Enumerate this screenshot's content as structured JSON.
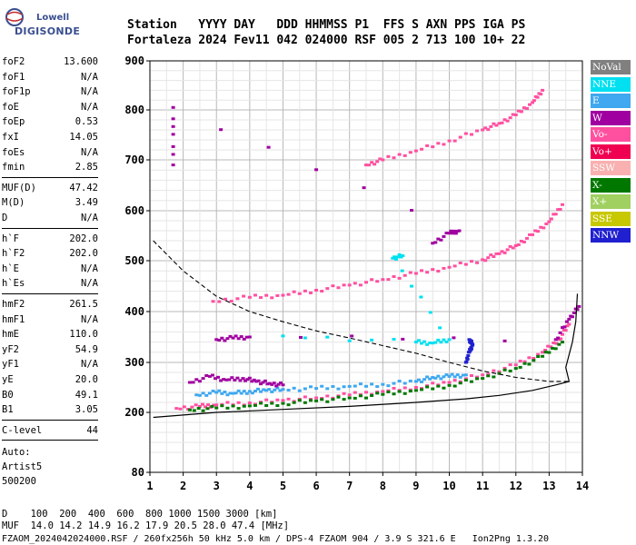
{
  "logo": {
    "brand": "Lowell",
    "product": "DIGISONDE"
  },
  "header": {
    "line1": "Station   YYYY DAY   DDD HHMMSS P1  FFS S AXN PPS IGA PS",
    "line2": "Fortaleza 2024 Fev11 042 024000 RSF 005 2 713 100 10+ 22"
  },
  "params_a": [
    {
      "k": "foF2",
      "v": "13.600"
    },
    {
      "k": "foF1",
      "v": "N/A"
    },
    {
      "k": "foF1p",
      "v": "N/A"
    },
    {
      "k": "foE",
      "v": "N/A"
    },
    {
      "k": "foEp",
      "v": "0.53"
    },
    {
      "k": "fxI",
      "v": "14.05"
    },
    {
      "k": "foEs",
      "v": "N/A"
    },
    {
      "k": "fmin",
      "v": "2.85"
    }
  ],
  "params_b": [
    {
      "k": "MUF(D)",
      "v": "47.42"
    },
    {
      "k": "M(D)",
      "v": "3.49"
    },
    {
      "k": "D",
      "v": "N/A"
    }
  ],
  "params_c": [
    {
      "k": "h`F",
      "v": "202.0"
    },
    {
      "k": "h`F2",
      "v": "202.0"
    },
    {
      "k": "h`E",
      "v": "N/A"
    },
    {
      "k": "h`Es",
      "v": "N/A"
    }
  ],
  "params_d": [
    {
      "k": "hmF2",
      "v": "261.5"
    },
    {
      "k": "hmF1",
      "v": "N/A"
    },
    {
      "k": "hmE",
      "v": "110.0"
    },
    {
      "k": "yF2",
      "v": "54.9"
    },
    {
      "k": "yF1",
      "v": "N/A"
    },
    {
      "k": "yE",
      "v": "20.0"
    },
    {
      "k": "B0",
      "v": "49.1"
    },
    {
      "k": "B1",
      "v": "3.05"
    }
  ],
  "params_e": [
    {
      "k": "C-level",
      "v": "44"
    }
  ],
  "auto": {
    "l1": "Auto:",
    "l2": "Artist5",
    "l3": "500200"
  },
  "legend": [
    {
      "label": "NoVal",
      "color": "#808080"
    },
    {
      "label": "NNE",
      "color": "#00e0f0"
    },
    {
      "label": "E",
      "color": "#3fa8f0"
    },
    {
      "label": "W",
      "color": "#a000a0"
    },
    {
      "label": "Vo-",
      "color": "#ff50a0"
    },
    {
      "label": "Vo+",
      "color": "#f00050"
    },
    {
      "label": "SSW",
      "color": "#f8b0b0"
    },
    {
      "label": "X-",
      "color": "#007800"
    },
    {
      "label": "X+",
      "color": "#a0d060"
    },
    {
      "label": "SSE",
      "color": "#c8c800"
    },
    {
      "label": "NNW",
      "color": "#2020d0"
    }
  ],
  "bottom": {
    "l1": "D    100  200  400  600  800 1000 1500 3000 [km]",
    "l2": "MUF  14.0 14.2 14.9 16.2 17.9 20.5 28.0 47.4 [MHz]",
    "l3": "FZAOM_2024042024000.RSF / 260fx256h 50 kHz 5.0 km / DPS-4 FZAOM 904 / 3.9 S 321.6 E   Ion2Png 1.3.20"
  },
  "chart_data": {
    "type": "scatter",
    "xlabel": "",
    "ylabel": "",
    "xlim": [
      1,
      14
    ],
    "ylim": [
      80,
      900
    ],
    "x_ticks": [
      1,
      2,
      3,
      4,
      5,
      6,
      7,
      8,
      9,
      10,
      11,
      12,
      13,
      14
    ],
    "y_ticks": [
      80,
      200,
      300,
      400,
      500,
      600,
      700,
      800,
      900
    ],
    "grid": true,
    "series": [
      {
        "color": "#ff50a0",
        "values": [
          [
            1.8,
            208
          ],
          [
            2.5,
            212
          ],
          [
            3,
            215
          ],
          [
            4,
            219
          ],
          [
            5,
            224
          ],
          [
            6,
            229
          ],
          [
            7,
            235
          ],
          [
            8,
            242
          ],
          [
            9,
            250
          ],
          [
            10,
            260
          ],
          [
            11,
            275
          ],
          [
            12,
            295
          ],
          [
            12.8,
            320
          ],
          [
            13.3,
            345
          ],
          [
            13.6,
            375
          ]
        ]
      },
      {
        "color": "#3fa8f0",
        "values": [
          [
            2.4,
            235
          ],
          [
            3,
            240
          ],
          [
            3.5,
            238
          ],
          [
            4,
            242
          ],
          [
            4.5,
            244
          ],
          [
            5,
            246
          ],
          [
            6,
            248
          ],
          [
            7,
            252
          ],
          [
            8,
            256
          ],
          [
            9,
            262
          ],
          [
            9.5,
            270
          ],
          [
            10,
            272
          ],
          [
            10.5,
            275
          ]
        ]
      },
      {
        "color": "#a000a0",
        "values": [
          [
            2.2,
            260
          ],
          [
            2.8,
            272
          ],
          [
            3.3,
            265
          ],
          [
            3.8,
            268
          ],
          [
            4.2,
            262
          ],
          [
            4.6,
            258
          ],
          [
            5,
            255
          ]
        ]
      },
      {
        "color": "#007800",
        "values": [
          [
            2.2,
            205
          ],
          [
            3,
            209
          ],
          [
            4,
            213
          ],
          [
            5,
            218
          ],
          [
            6,
            223
          ],
          [
            7,
            229
          ],
          [
            8,
            236
          ],
          [
            9,
            244
          ],
          [
            10,
            254
          ],
          [
            11,
            268
          ],
          [
            12,
            288
          ],
          [
            12.8,
            312
          ],
          [
            13.4,
            340
          ]
        ]
      },
      {
        "color": "#ff50a0",
        "values": [
          [
            2.9,
            420
          ],
          [
            4,
            428
          ],
          [
            5,
            432
          ],
          [
            6,
            442
          ],
          [
            7,
            452
          ],
          [
            8,
            463
          ],
          [
            9,
            475
          ],
          [
            10,
            487
          ],
          [
            11,
            502
          ],
          [
            11.5,
            514
          ],
          [
            12,
            530
          ],
          [
            12.5,
            552
          ],
          [
            13,
            578
          ],
          [
            13.4,
            612
          ]
        ]
      },
      {
        "color": "#ff50a0",
        "values": [
          [
            7.5,
            690
          ],
          [
            8,
            700
          ],
          [
            9,
            718
          ],
          [
            10,
            738
          ],
          [
            11,
            760
          ],
          [
            11.5,
            773
          ],
          [
            12,
            790
          ],
          [
            12.5,
            815
          ],
          [
            12.8,
            840
          ]
        ]
      },
      {
        "color": "#2020d0",
        "values": [
          [
            10.5,
            300
          ],
          [
            10.6,
            320
          ],
          [
            10.7,
            335
          ],
          [
            10.6,
            345
          ]
        ]
      },
      {
        "color": "#a000a0",
        "values": [
          [
            3,
            345
          ],
          [
            3.5,
            348
          ],
          [
            4,
            350
          ],
          [
            13.2,
            345
          ],
          [
            13.6,
            385
          ],
          [
            13.9,
            410
          ]
        ]
      },
      {
        "color": "#a000a0",
        "values": [
          [
            9.5,
            535
          ],
          [
            10,
            555
          ],
          [
            10.3,
            560
          ],
          [
            1.7,
            805
          ],
          [
            1.7,
            690
          ]
        ]
      },
      {
        "color": "#00e0f0",
        "values": [
          [
            5,
            352
          ],
          [
            9,
            340
          ],
          [
            9.5,
            338
          ],
          [
            10,
            345
          ],
          [
            8.3,
            505
          ],
          [
            8.6,
            510
          ]
        ]
      }
    ],
    "profile_solid": [
      [
        1.1,
        190
      ],
      [
        3,
        200
      ],
      [
        5,
        206
      ],
      [
        7,
        212
      ],
      [
        9,
        220
      ],
      [
        10.5,
        227
      ],
      [
        11.5,
        234
      ],
      [
        12.5,
        244
      ],
      [
        13.2,
        255
      ],
      [
        13.6,
        262
      ],
      [
        13.5,
        290
      ],
      [
        13.7,
        340
      ],
      [
        13.8,
        380
      ],
      [
        13.85,
        435
      ]
    ],
    "profile_dashed": [
      [
        1.1,
        540
      ],
      [
        2,
        480
      ],
      [
        3,
        430
      ],
      [
        4,
        400
      ],
      [
        5,
        380
      ],
      [
        6,
        362
      ],
      [
        7,
        348
      ],
      [
        8,
        333
      ],
      [
        9,
        318
      ],
      [
        10,
        300
      ],
      [
        11,
        283
      ],
      [
        12,
        270
      ],
      [
        13,
        262
      ],
      [
        13.6,
        262
      ]
    ]
  }
}
